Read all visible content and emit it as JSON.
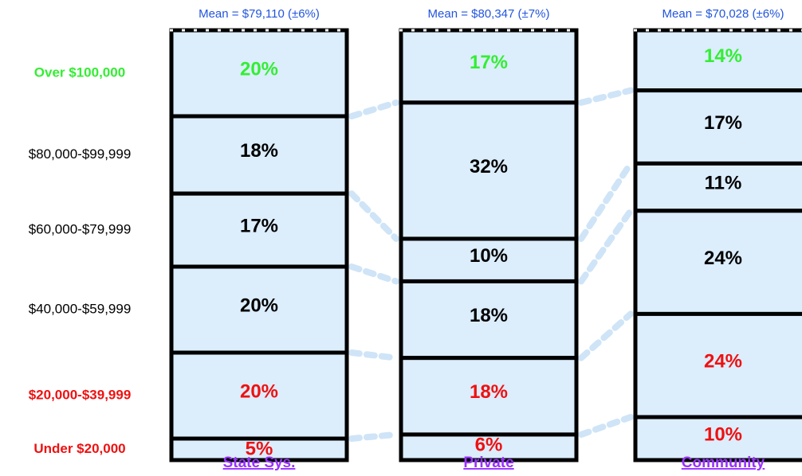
{
  "chart_data": {
    "type": "stacked_column",
    "categories": [
      "State Sys.",
      "Private",
      "Community"
    ],
    "annotations": [
      "Mean = $79,110 (±6%)",
      "Mean = $80,347 (±7%)",
      "Mean = $70,028 (±6%)"
    ],
    "bar_color": "#dcedfc",
    "series": [
      {
        "name": "Over $100,000",
        "color": "#33ee33",
        "values": [
          20,
          17,
          14
        ],
        "value_labels": [
          "20%",
          "17%",
          "14%"
        ]
      },
      {
        "name": "$80,000-$99,999",
        "color": "#000000",
        "values": [
          18,
          32,
          17
        ],
        "value_labels": [
          "18%",
          "32%",
          "17%"
        ]
      },
      {
        "name": "$60,000-$79,999",
        "color": "#000000",
        "values": [
          17,
          10,
          11
        ],
        "value_labels": [
          "17%",
          "10%",
          "11%"
        ]
      },
      {
        "name": "$40,000-$59,999",
        "color": "#000000",
        "values": [
          20,
          18,
          24
        ],
        "value_labels": [
          "20%",
          "18%",
          "24%"
        ]
      },
      {
        "name": "$20,000-$39,999",
        "color": "#ee1111",
        "values": [
          20,
          18,
          24
        ],
        "value_labels": [
          "20%",
          "18%",
          "24%"
        ]
      },
      {
        "name": "Under $20,000",
        "color": "#ee1111",
        "values": [
          5,
          6,
          10
        ],
        "value_labels": [
          "5%",
          "6%",
          "10%"
        ]
      }
    ]
  }
}
